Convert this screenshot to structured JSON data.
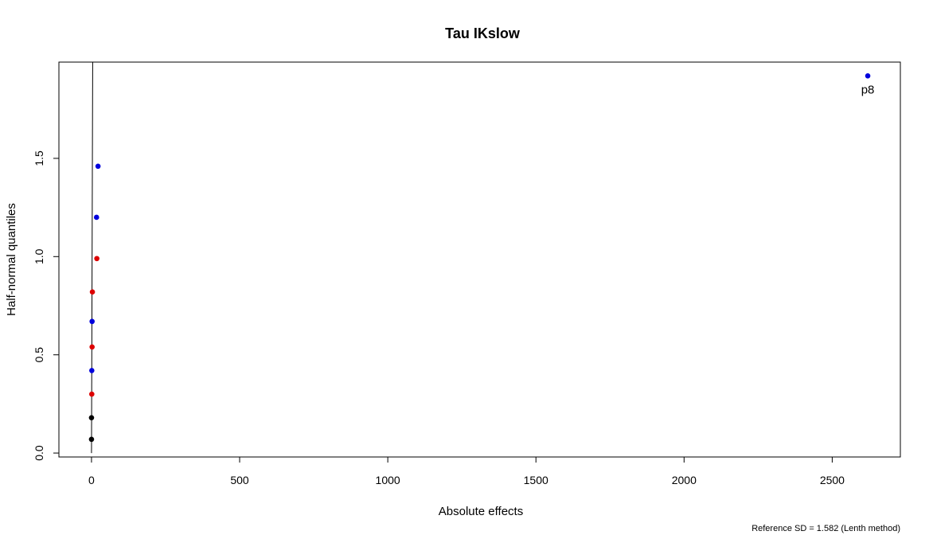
{
  "chart_data": {
    "type": "scatter",
    "title": "Tau IKslow",
    "xlabel": "Absolute effects",
    "ylabel": "Half-normal quantiles",
    "xlim": [
      -110,
      2730
    ],
    "ylim": [
      -0.02,
      1.99
    ],
    "xticks": [
      0,
      500,
      1000,
      1500,
      2000,
      2500
    ],
    "yticks": [
      0.0,
      0.5,
      1.0,
      1.5
    ],
    "xtick_labels": [
      "0",
      "500",
      "1000",
      "1500",
      "2000",
      "2500"
    ],
    "ytick_labels": [
      "0.0",
      "0.5",
      "1.0",
      "1.5"
    ],
    "grid": false,
    "points": [
      {
        "x": 0,
        "y": 0.07,
        "color": "#000000",
        "label": ""
      },
      {
        "x": 0,
        "y": 0.18,
        "color": "#000000",
        "label": ""
      },
      {
        "x": 1,
        "y": 0.3,
        "color": "#dd0000",
        "label": ""
      },
      {
        "x": 1,
        "y": 0.42,
        "color": "#0000dd",
        "label": ""
      },
      {
        "x": 2,
        "y": 0.54,
        "color": "#dd0000",
        "label": ""
      },
      {
        "x": 2,
        "y": 0.67,
        "color": "#0000dd",
        "label": ""
      },
      {
        "x": 3,
        "y": 0.82,
        "color": "#dd0000",
        "label": ""
      },
      {
        "x": 18,
        "y": 0.99,
        "color": "#dd0000",
        "label": ""
      },
      {
        "x": 17,
        "y": 1.2,
        "color": "#0000dd",
        "label": ""
      },
      {
        "x": 22,
        "y": 1.46,
        "color": "#0000dd",
        "label": ""
      },
      {
        "x": 2620,
        "y": 1.92,
        "color": "#0000dd",
        "label": "p8"
      }
    ],
    "reference_line": {
      "x": [
        0,
        4.0
      ],
      "y": [
        0,
        1.99
      ]
    },
    "footnote": "Reference SD = 1.582 (Lenth method)"
  }
}
